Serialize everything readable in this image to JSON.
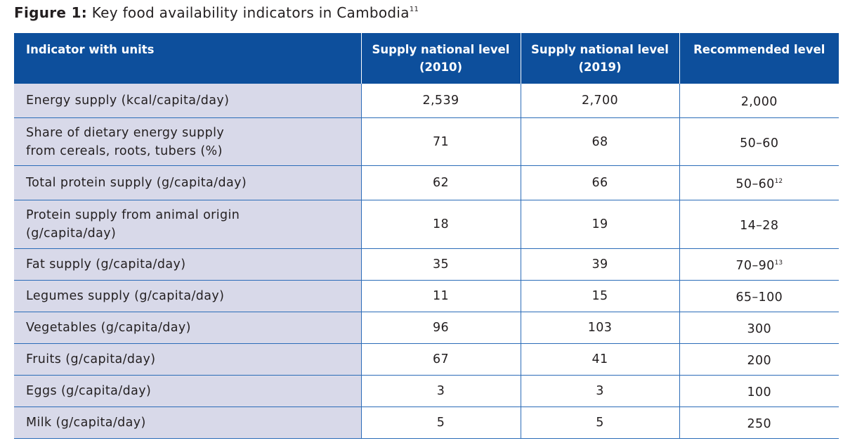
{
  "caption": {
    "label": "Figure 1:",
    "title": "Key food availability indicators in Cambodia",
    "footnote": "11"
  },
  "table": {
    "headers": [
      "Indicator with units",
      "Supply national level (2010)",
      "Supply national level (2019)",
      "Recommended level"
    ],
    "rows": [
      {
        "indicator": "Energy supply (kcal/capita/day)",
        "y2010": "2,539",
        "y2019": "2,700",
        "recommended": "2,000",
        "note": ""
      },
      {
        "indicator": "Share of dietary energy supply from cereals, roots, tubers (%)",
        "y2010": "71",
        "y2019": "68",
        "recommended": "50–60",
        "note": ""
      },
      {
        "indicator": "Total protein supply (g/capita/day)",
        "y2010": "62",
        "y2019": "66",
        "recommended": "50–60",
        "note": "12"
      },
      {
        "indicator": "Protein supply from animal origin (g/capita/day)",
        "y2010": "18",
        "y2019": "19",
        "recommended": "14–28",
        "note": ""
      },
      {
        "indicator": "Fat supply (g/capita/day)",
        "y2010": "35",
        "y2019": "39",
        "recommended": "70–90",
        "note": "13"
      },
      {
        "indicator": "Legumes supply (g/capita/day)",
        "y2010": "11",
        "y2019": "15",
        "recommended": "65–100",
        "note": ""
      },
      {
        "indicator": "Vegetables (g/capita/day)",
        "y2010": "96",
        "y2019": "103",
        "recommended": "300",
        "note": ""
      },
      {
        "indicator": "Fruits (g/capita/day)",
        "y2010": "67",
        "y2019": "41",
        "recommended": "200",
        "note": ""
      },
      {
        "indicator": "Eggs (g/capita/day)",
        "y2010": "3",
        "y2019": "3",
        "recommended": "100",
        "note": ""
      },
      {
        "indicator": "Milk (g/capita/day)",
        "y2010": "5",
        "y2019": "5",
        "recommended": "250",
        "note": ""
      }
    ]
  },
  "colors": {
    "header_bg": "#0d4f9c",
    "first_col_bg": "#d8d9e9",
    "rule": "#2b6cb8"
  }
}
